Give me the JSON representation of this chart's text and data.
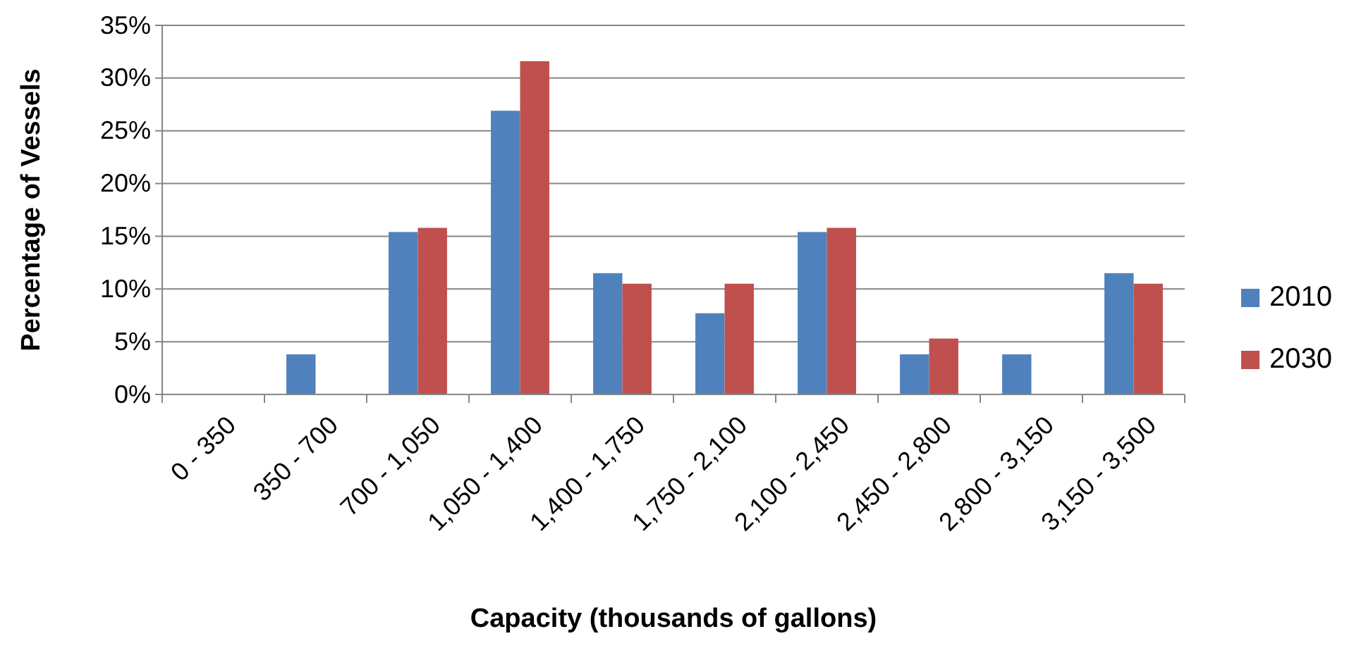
{
  "chart_data": {
    "type": "bar",
    "xlabel": "Capacity (thousands of gallons)",
    "ylabel": "Percentage of Vessels",
    "categories": [
      "0 - 350",
      "350 - 700",
      "700 - 1,050",
      "1,050 - 1,400",
      "1,400 - 1,750",
      "1,750 - 2,100",
      "2,100 - 2,450",
      "2,450 - 2,800",
      "2,800 - 3,150",
      "3,150 - 3,500"
    ],
    "series": [
      {
        "name": "2010",
        "color": "#4f81bd",
        "values": [
          0,
          3.8,
          15.4,
          26.9,
          11.5,
          7.7,
          15.4,
          3.8,
          3.8,
          11.5
        ]
      },
      {
        "name": "2030",
        "color": "#c0504d",
        "values": [
          0,
          0,
          15.8,
          31.6,
          10.5,
          10.5,
          15.8,
          5.3,
          0,
          10.5
        ]
      }
    ],
    "ylim": [
      0,
      35
    ],
    "yticks": [
      {
        "value": 0,
        "label": "0%"
      },
      {
        "value": 5,
        "label": "5%"
      },
      {
        "value": 10,
        "label": "10%"
      },
      {
        "value": 15,
        "label": "15%"
      },
      {
        "value": 20,
        "label": "20%"
      },
      {
        "value": 25,
        "label": "25%"
      },
      {
        "value": 30,
        "label": "30%"
      },
      {
        "value": 35,
        "label": "35%"
      }
    ],
    "grid": "y",
    "legend": "right"
  }
}
